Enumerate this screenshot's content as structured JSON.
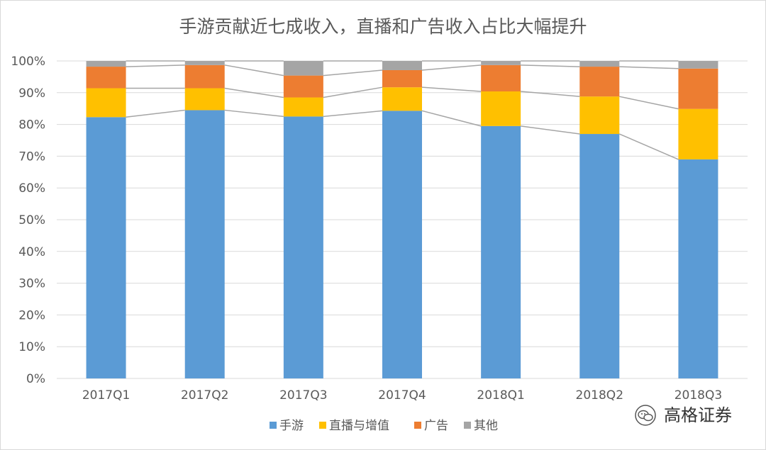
{
  "chart_data": {
    "type": "bar",
    "stacked": true,
    "title": "手游贡献近七成收入，直播和广告收入占比大幅提升",
    "categories": [
      "2017Q1",
      "2017Q2",
      "2017Q3",
      "2017Q4",
      "2018Q1",
      "2018Q2",
      "2018Q3"
    ],
    "series": [
      {
        "name": "手游",
        "color": "#5b9bd5",
        "values": [
          82.3,
          84.5,
          82.5,
          84.3,
          79.5,
          77.0,
          69.0
        ]
      },
      {
        "name": "直播与增值",
        "color": "#ffc000",
        "values": [
          9.1,
          6.9,
          6.0,
          7.4,
          10.9,
          11.8,
          15.9
        ]
      },
      {
        "name": "广告",
        "color": "#ed7d31",
        "values": [
          6.8,
          7.3,
          6.9,
          5.4,
          8.3,
          9.4,
          12.7
        ]
      },
      {
        "name": "其他",
        "color": "#a5a5a5",
        "values": [
          1.8,
          1.3,
          4.6,
          2.9,
          1.3,
          1.8,
          2.4
        ]
      }
    ],
    "yticks": [
      "0%",
      "10%",
      "20%",
      "30%",
      "40%",
      "50%",
      "60%",
      "70%",
      "80%",
      "90%",
      "100%"
    ],
    "ylim": [
      0,
      100
    ],
    "grid": true,
    "series_lines": true,
    "legend_position": "bottom"
  },
  "watermark": {
    "text": "高格证券",
    "icon": "wechat-icon"
  }
}
